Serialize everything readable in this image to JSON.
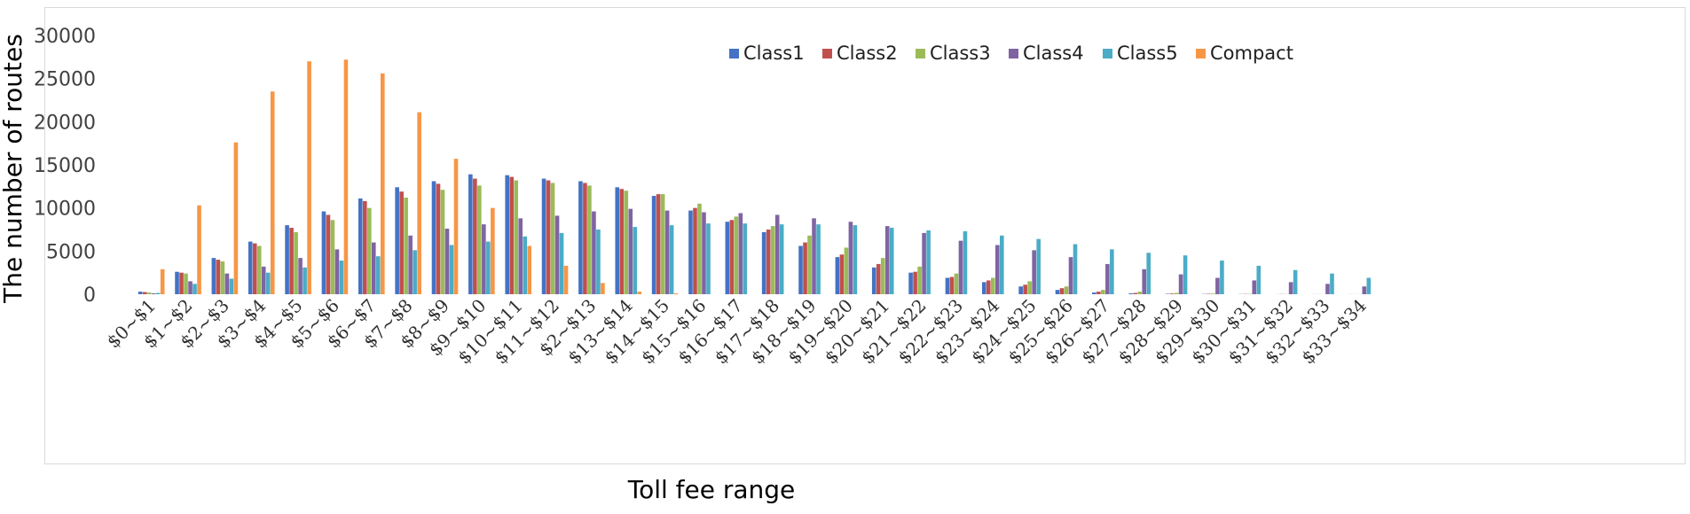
{
  "chart_data": {
    "type": "bar",
    "xlabel": "Toll fee range",
    "ylabel": "The number of routes",
    "ylim": [
      0,
      30000
    ],
    "yticks": [
      0,
      5000,
      10000,
      15000,
      20000,
      25000,
      30000
    ],
    "grid": false,
    "legend_position": "top-right",
    "categories": [
      "$0~$1",
      "$1~$2",
      "$2~$3",
      "$3~$4",
      "$4~$5",
      "$5~$6",
      "$6~$7",
      "$7~$8",
      "$8~$9",
      "$9~$10",
      "$10~$11",
      "$11~$12",
      "$2~$13",
      "$13~$14",
      "$14~$15",
      "$15~$16",
      "$16~$17",
      "$17~$18",
      "$18~$19",
      "$19~$20",
      "$20~$21",
      "$21~$22",
      "$22~$23",
      "$23~$24",
      "$24~$25",
      "$25~$26",
      "$26~$27",
      "$27~$28",
      "$28~$29",
      "$29~$30",
      "$30~$31",
      "$31~$32",
      "$32~$33",
      "$33~$34"
    ],
    "series": [
      {
        "name": "Class1",
        "color": "#4472c4",
        "values": [
          300,
          2600,
          4200,
          6100,
          8000,
          9600,
          11100,
          12400,
          13100,
          13900,
          13800,
          13400,
          13100,
          12400,
          11400,
          9700,
          8400,
          7200,
          5600,
          4300,
          3100,
          2500,
          1900,
          1400,
          900,
          500,
          200,
          100,
          50,
          30,
          20,
          10,
          10,
          10
        ]
      },
      {
        "name": "Class2",
        "color": "#c0504d",
        "values": [
          250,
          2500,
          4000,
          5900,
          7700,
          9200,
          10800,
          11900,
          12800,
          13400,
          13600,
          13200,
          12900,
          12200,
          11600,
          10000,
          8600,
          7500,
          6000,
          4600,
          3500,
          2600,
          2000,
          1600,
          1100,
          700,
          300,
          150,
          80,
          50,
          30,
          20,
          10,
          10
        ]
      },
      {
        "name": "Class3",
        "color": "#9bbb59",
        "values": [
          200,
          2400,
          3800,
          5600,
          7200,
          8600,
          10000,
          11200,
          12100,
          12600,
          13200,
          12900,
          12600,
          12000,
          11600,
          10500,
          9000,
          7900,
          6800,
          5400,
          4200,
          3200,
          2400,
          1900,
          1500,
          900,
          500,
          300,
          150,
          80,
          40,
          20,
          10,
          10
        ]
      },
      {
        "name": "Class4",
        "color": "#8064a2",
        "values": [
          100,
          1500,
          2400,
          3200,
          4200,
          5200,
          6000,
          6800,
          7600,
          8100,
          8800,
          9100,
          9600,
          9900,
          9700,
          9500,
          9400,
          9200,
          8800,
          8400,
          7900,
          7100,
          6200,
          5700,
          5100,
          4300,
          3500,
          2900,
          2300,
          1900,
          1600,
          1400,
          1200,
          900
        ]
      },
      {
        "name": "Class5",
        "color": "#4bacc6",
        "values": [
          150,
          1200,
          1800,
          2500,
          3100,
          3900,
          4400,
          5100,
          5700,
          6100,
          6700,
          7100,
          7500,
          7800,
          8000,
          8200,
          8200,
          8100,
          8100,
          8000,
          7700,
          7400,
          7300,
          6800,
          6400,
          5800,
          5200,
          4800,
          4500,
          3900,
          3300,
          2800,
          2400,
          1900
        ]
      },
      {
        "name": "Compact",
        "color": "#f79646",
        "values": [
          2900,
          10300,
          17600,
          23500,
          27000,
          27200,
          25600,
          21100,
          15700,
          10000,
          5600,
          3300,
          1300,
          300,
          100,
          0,
          0,
          0,
          0,
          0,
          0,
          0,
          0,
          0,
          0,
          0,
          0,
          0,
          0,
          0,
          0,
          0,
          0,
          0
        ]
      }
    ]
  }
}
